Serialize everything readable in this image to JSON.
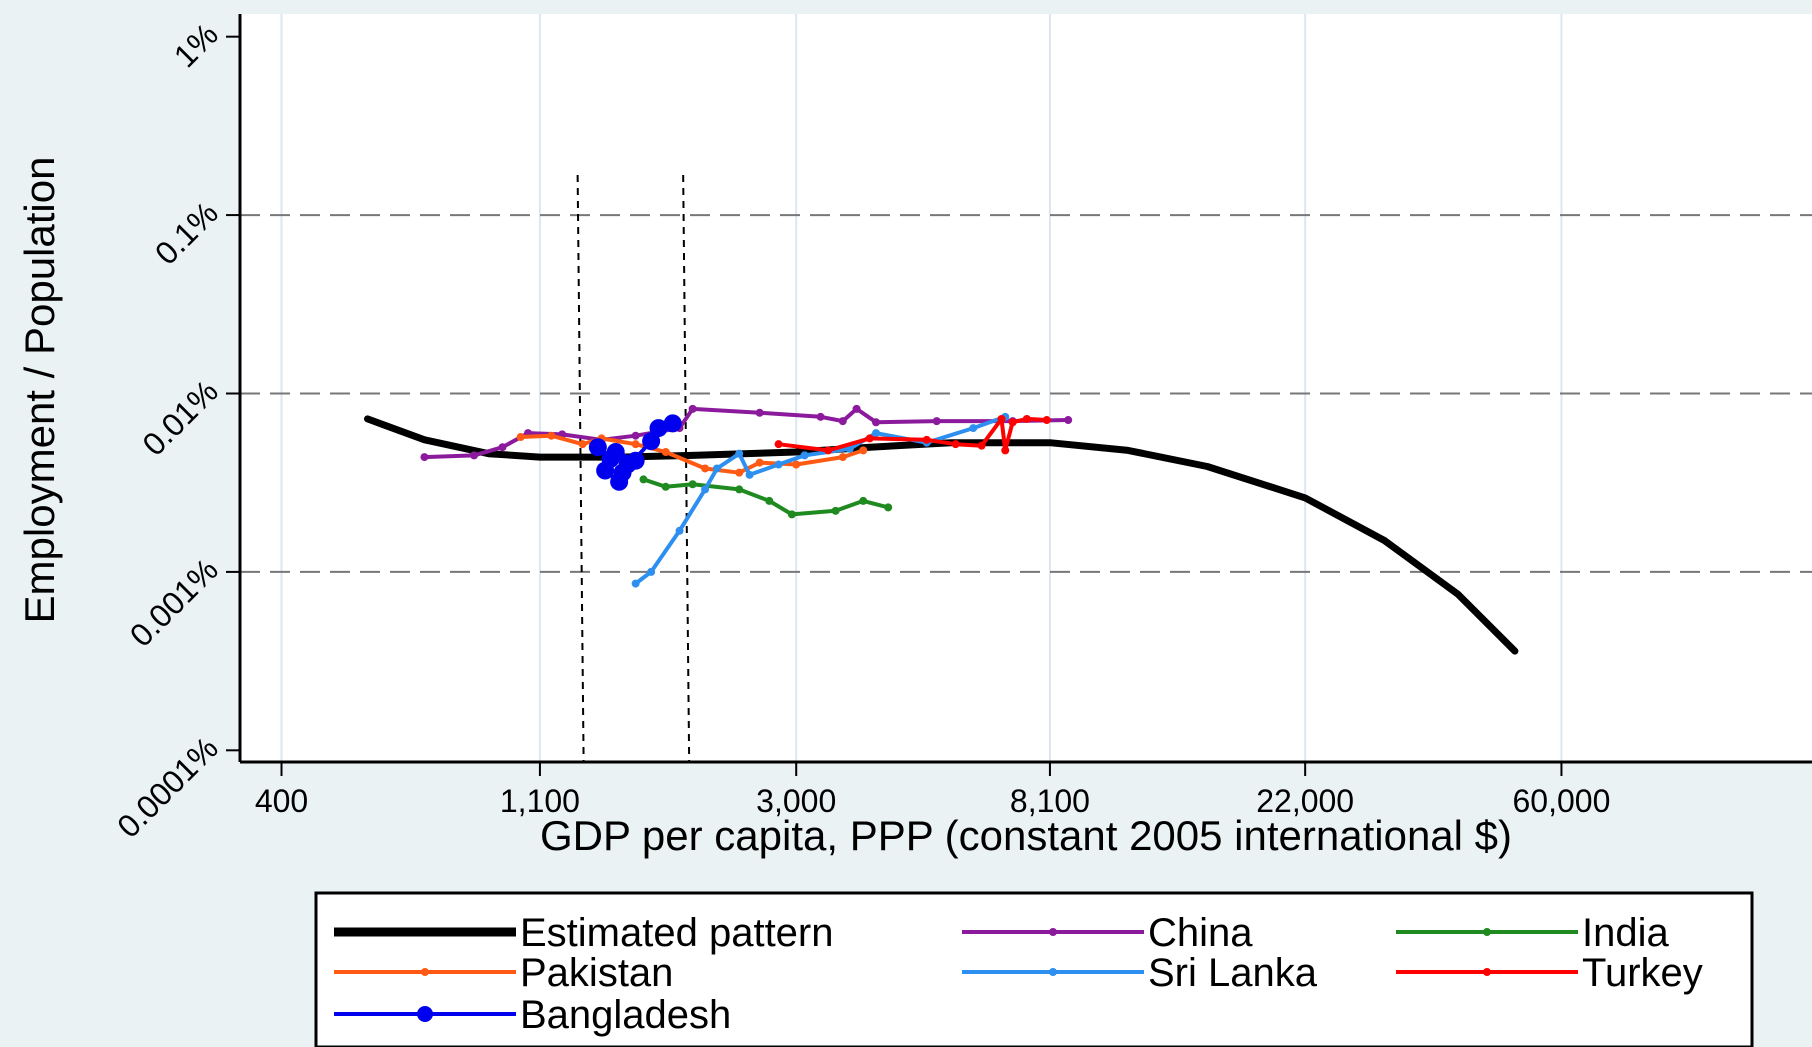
{
  "chart_data": {
    "type": "line",
    "title": "",
    "xlabel": "GDP per capita, PPP (constant 2005 international $)",
    "ylabel": "Employment / Population",
    "x_scale": "log",
    "y_scale": "log",
    "x_ticks": [
      {
        "value": 400,
        "label": "400"
      },
      {
        "value": 1100,
        "label": "1,100"
      },
      {
        "value": 3000,
        "label": "3,000"
      },
      {
        "value": 8100,
        "label": "8,100"
      },
      {
        "value": 22000,
        "label": "22,000"
      },
      {
        "value": 60000,
        "label": "60,000"
      }
    ],
    "y_ticks": [
      {
        "value": 0.0001,
        "label": "0.0001%"
      },
      {
        "value": 0.001,
        "label": "0.001%"
      },
      {
        "value": 0.01,
        "label": "0.01%"
      },
      {
        "value": 0.1,
        "label": "0.1%"
      },
      {
        "value": 1,
        "label": "1%"
      }
    ],
    "xlim": [
      340,
      160000
    ],
    "ylim": [
      8.6e-05,
      1.34
    ],
    "grid": {
      "vertical": true,
      "horizontal_dashed": [
        0.001,
        0.01,
        0.1
      ]
    },
    "reference_lines_x": [
      1290,
      1950
    ],
    "legend_position": "bottom",
    "series": [
      {
        "name": "Estimated pattern",
        "color": "#000000",
        "points": [
          [
            560,
            0.0072
          ],
          [
            700,
            0.0055
          ],
          [
            900,
            0.0046
          ],
          [
            1100,
            0.0044
          ],
          [
            1500,
            0.0044
          ],
          [
            2000,
            0.0045
          ],
          [
            3000,
            0.0047
          ],
          [
            4000,
            0.005
          ],
          [
            5500,
            0.0053
          ],
          [
            8100,
            0.0053
          ],
          [
            11000,
            0.0048
          ],
          [
            15000,
            0.0039
          ],
          [
            22000,
            0.0026
          ],
          [
            30000,
            0.0015
          ],
          [
            40000,
            0.00075
          ],
          [
            50000,
            0.00036
          ]
        ]
      },
      {
        "name": "China",
        "color": "#8b1a9c",
        "points": [
          [
            700,
            0.0044
          ],
          [
            850,
            0.0045
          ],
          [
            950,
            0.005
          ],
          [
            1050,
            0.006
          ],
          [
            1200,
            0.0059
          ],
          [
            1400,
            0.0055
          ],
          [
            1600,
            0.0058
          ],
          [
            1900,
            0.0064
          ],
          [
            2000,
            0.0082
          ],
          [
            2600,
            0.0078
          ],
          [
            3300,
            0.0074
          ],
          [
            3600,
            0.007
          ],
          [
            3800,
            0.0082
          ],
          [
            4100,
            0.0069
          ],
          [
            5200,
            0.007
          ],
          [
            7000,
            0.007
          ],
          [
            8700,
            0.0071
          ]
        ]
      },
      {
        "name": "India",
        "color": "#1f8a1f",
        "points": [
          [
            1650,
            0.0033
          ],
          [
            1800,
            0.003
          ],
          [
            2000,
            0.0031
          ],
          [
            2400,
            0.0029
          ],
          [
            2700,
            0.0025
          ],
          [
            2950,
            0.0021
          ],
          [
            3500,
            0.0022
          ],
          [
            3900,
            0.0025
          ],
          [
            4300,
            0.0023
          ]
        ]
      },
      {
        "name": "Pakistan",
        "color": "#ff5a14",
        "points": [
          [
            1020,
            0.0057
          ],
          [
            1150,
            0.0058
          ],
          [
            1300,
            0.0052
          ],
          [
            1400,
            0.0056
          ],
          [
            1600,
            0.0052
          ],
          [
            1800,
            0.0047
          ],
          [
            2100,
            0.0038
          ],
          [
            2400,
            0.0036
          ],
          [
            2600,
            0.0041
          ],
          [
            3000,
            0.004
          ],
          [
            3600,
            0.0044
          ],
          [
            3900,
            0.0048
          ]
        ]
      },
      {
        "name": "Sri Lanka",
        "color": "#2d8ff0",
        "points": [
          [
            1600,
            0.00086
          ],
          [
            1700,
            0.001
          ],
          [
            1900,
            0.0017
          ],
          [
            2100,
            0.0029
          ],
          [
            2200,
            0.0038
          ],
          [
            2400,
            0.0046
          ],
          [
            2500,
            0.0035
          ],
          [
            2800,
            0.004
          ],
          [
            3100,
            0.0045
          ],
          [
            3700,
            0.0049
          ],
          [
            4100,
            0.006
          ],
          [
            5000,
            0.0053
          ],
          [
            6000,
            0.0064
          ],
          [
            6800,
            0.0074
          ]
        ]
      },
      {
        "name": "Turkey",
        "color": "#ff0000",
        "points": [
          [
            2800,
            0.0052
          ],
          [
            3400,
            0.0048
          ],
          [
            4000,
            0.0056
          ],
          [
            5000,
            0.0055
          ],
          [
            5600,
            0.0052
          ],
          [
            6200,
            0.0051
          ],
          [
            6700,
            0.0072
          ],
          [
            6800,
            0.0048
          ],
          [
            7000,
            0.0069
          ],
          [
            7400,
            0.0072
          ],
          [
            8000,
            0.0071
          ]
        ]
      },
      {
        "name": "Bangladesh",
        "color": "#0000ee",
        "points": [
          [
            1380,
            0.005
          ],
          [
            1450,
            0.0043
          ],
          [
            1420,
            0.0037
          ],
          [
            1500,
            0.0032
          ],
          [
            1550,
            0.004
          ],
          [
            1480,
            0.0047
          ],
          [
            1600,
            0.0042
          ],
          [
            1520,
            0.0036
          ],
          [
            1700,
            0.0054
          ],
          [
            1750,
            0.0064
          ],
          [
            1850,
            0.0068
          ]
        ]
      }
    ]
  }
}
